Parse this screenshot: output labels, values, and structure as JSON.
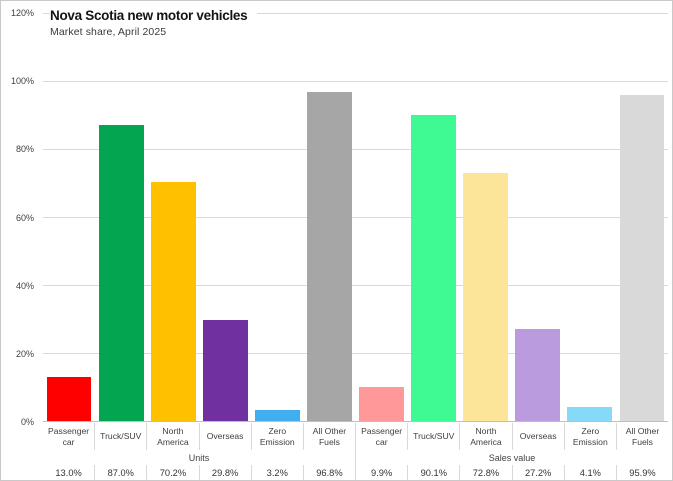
{
  "chart": {
    "title": "Nova Scotia new motor vehicles",
    "subtitle": "Market share, April 2025"
  },
  "chart_data": {
    "type": "bar",
    "title": "Nova Scotia new motor vehicles",
    "subtitle": "Market share, April 2025",
    "xlabel": "",
    "ylabel": "",
    "ylim": [
      0,
      120
    ],
    "yticks": [
      0,
      20,
      40,
      60,
      80,
      100,
      120
    ],
    "ytick_labels": [
      "0%",
      "20%",
      "40%",
      "60%",
      "80%",
      "100%",
      "120%"
    ],
    "grid": true,
    "gridline_color": "#D9D9D9",
    "axis_line_color": "#BFBFBF",
    "legend": "none",
    "groups": [
      {
        "label": "Units",
        "categories": [
          "Passenger car",
          "Truck/SUV",
          "North America",
          "Overseas",
          "Zero Emission",
          "All Other Fuels"
        ],
        "values": [
          13.0,
          87.0,
          70.2,
          29.8,
          3.2,
          96.8
        ],
        "value_labels": [
          "13.0%",
          "87.0%",
          "70.2%",
          "29.8%",
          "3.2%",
          "96.8%"
        ],
        "colors": [
          "#FF0000",
          "#04A551",
          "#FFC000",
          "#7030A0",
          "#41AEF0",
          "#A6A6A6"
        ]
      },
      {
        "label": "Sales value",
        "categories": [
          "Passenger car",
          "Truck/SUV",
          "North America",
          "Overseas",
          "Zero Emission",
          "All Other Fuels"
        ],
        "values": [
          9.9,
          90.1,
          72.8,
          27.2,
          4.1,
          95.9
        ],
        "value_labels": [
          "9.9%",
          "90.1%",
          "72.8%",
          "27.2%",
          "4.1%",
          "95.9%"
        ],
        "colors": [
          "#FF9999",
          "#3DFB92",
          "#FCE499",
          "#BA9CDE",
          "#87D9F8",
          "#D9D9D9"
        ]
      }
    ]
  }
}
